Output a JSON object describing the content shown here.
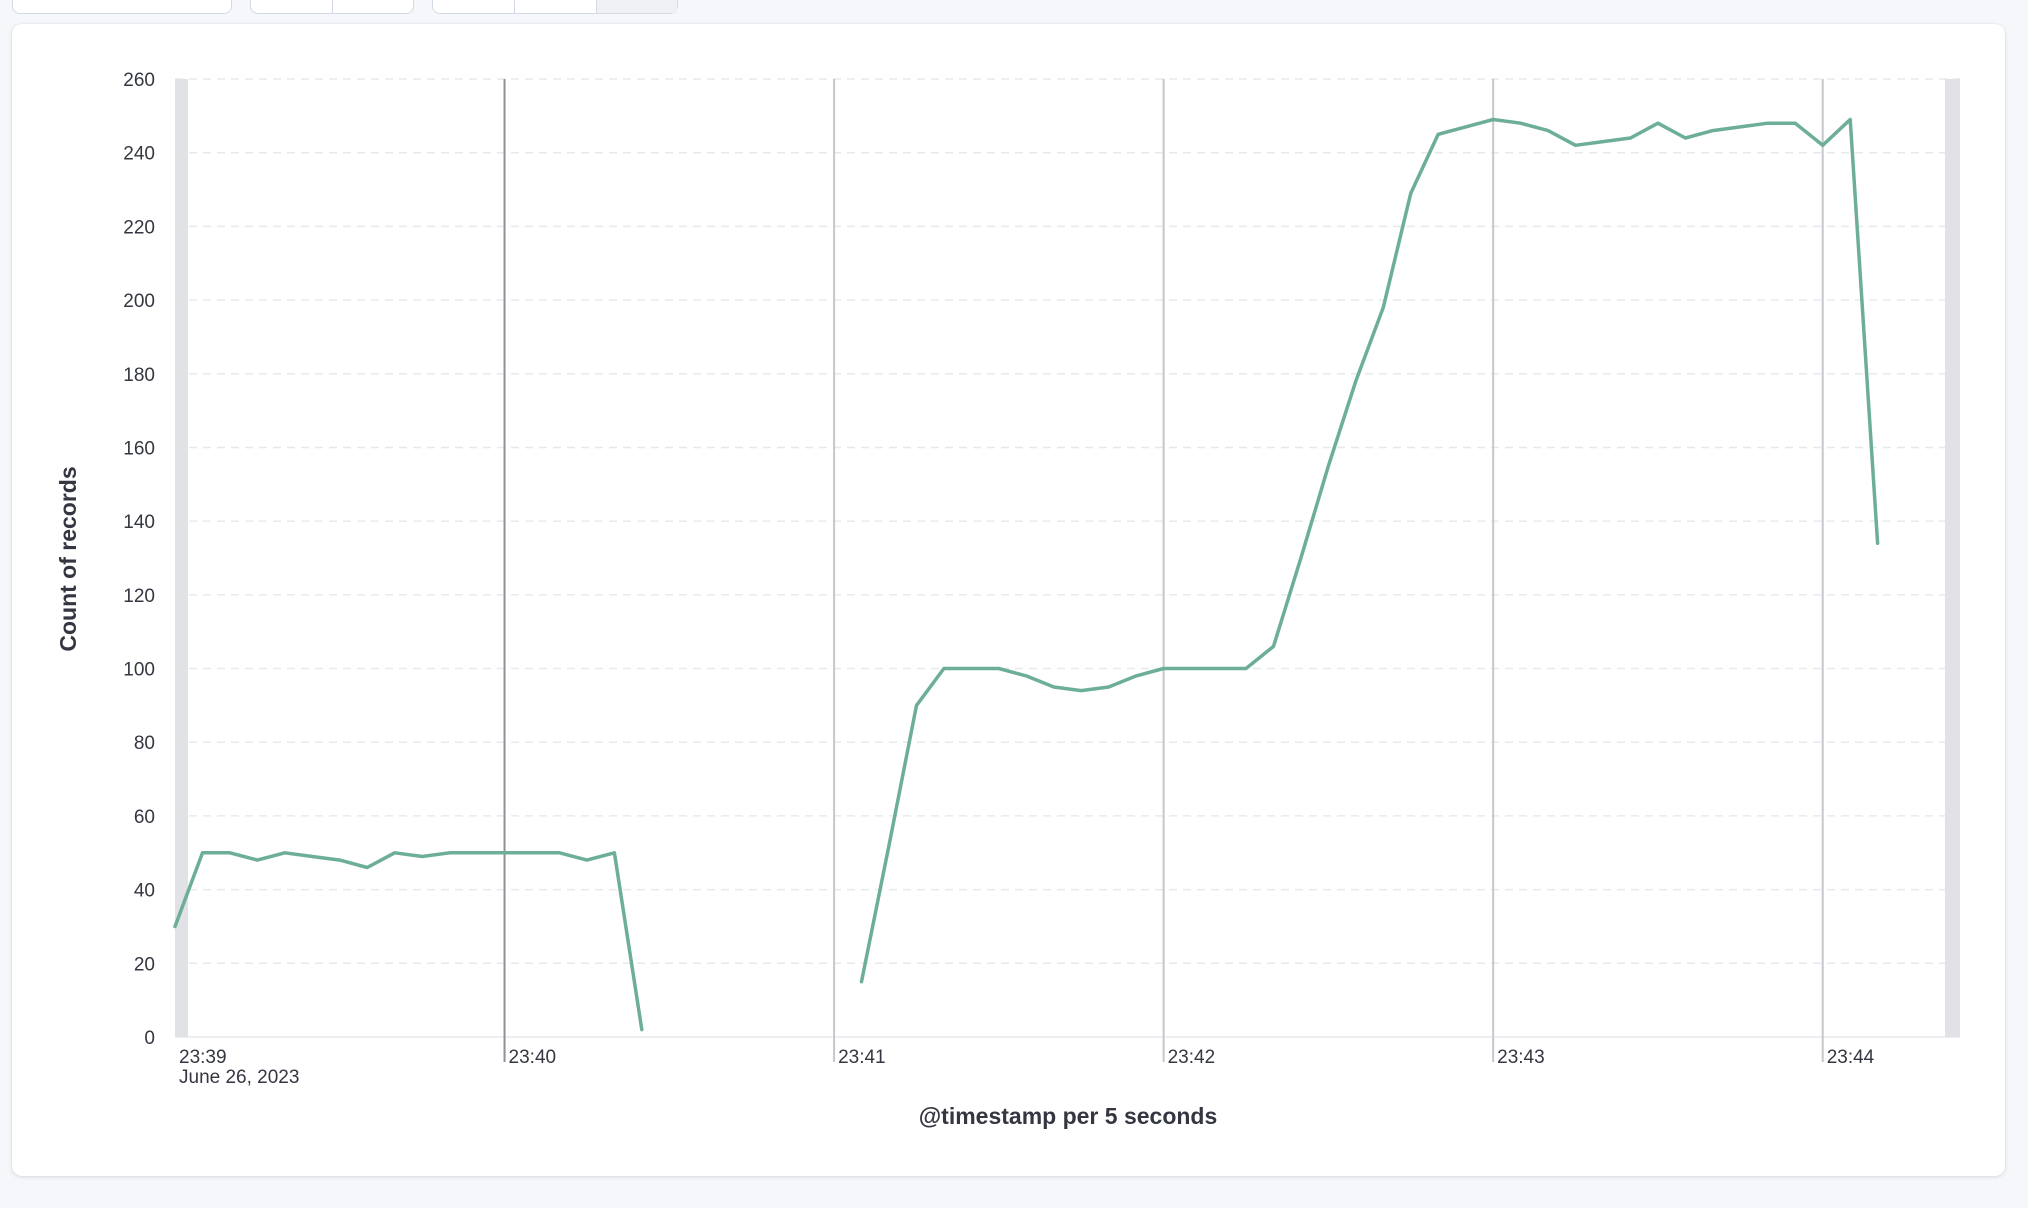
{
  "colors": {
    "series": "#6dae96",
    "grid": "#e6e9ee",
    "major_grid": "#8e9298",
    "minor_grid": "#c4c7cc",
    "end_band": "#e0e2e6",
    "text": "#343741"
  },
  "chart_data": {
    "type": "line",
    "xlabel": "@timestamp per 5 seconds",
    "ylabel": "Count of records",
    "ylim": [
      0,
      260
    ],
    "y_ticks": [
      0,
      20,
      40,
      60,
      80,
      100,
      120,
      140,
      160,
      180,
      200,
      220,
      240,
      260
    ],
    "xlim": [
      "23:39:00",
      "23:44:25"
    ],
    "x_ticks": [
      {
        "time": "23:39:00",
        "label": "23:39",
        "sublabel": "June 26, 2023"
      },
      {
        "time": "23:40:00",
        "label": "23:40",
        "sublabel": ""
      },
      {
        "time": "23:41:00",
        "label": "23:41",
        "sublabel": ""
      },
      {
        "time": "23:42:00",
        "label": "23:42",
        "sublabel": ""
      },
      {
        "time": "23:43:00",
        "label": "23:43",
        "sublabel": ""
      },
      {
        "time": "23:44:00",
        "label": "23:44",
        "sublabel": ""
      }
    ],
    "grid": true,
    "series": [
      {
        "segments": [
          {
            "x": [
              "23:39:00",
              "23:39:05",
              "23:39:10",
              "23:39:15",
              "23:39:20",
              "23:39:25",
              "23:39:30",
              "23:39:35",
              "23:39:40",
              "23:39:45",
              "23:39:50",
              "23:39:55",
              "23:40:00",
              "23:40:05",
              "23:40:10",
              "23:40:15",
              "23:40:20",
              "23:40:25",
              "23:40:30",
              "23:40:35",
              "23:40:40"
            ],
            "y": [
              30,
              50,
              50,
              48,
              50,
              49,
              48,
              46,
              50,
              49,
              50,
              50,
              50,
              50,
              50,
              48,
              50,
              2,
              null,
              null,
              null
            ]
          },
          {
            "x": [
              "23:41:05",
              "23:41:10",
              "23:41:15",
              "23:41:20",
              "23:41:25",
              "23:41:30",
              "23:41:35",
              "23:41:40",
              "23:41:45",
              "23:41:50",
              "23:41:55",
              "23:42:00",
              "23:42:05",
              "23:42:10",
              "23:42:15",
              "23:42:20",
              "23:42:25",
              "23:42:30",
              "23:42:35",
              "23:42:40",
              "23:42:45",
              "23:42:50",
              "23:42:55",
              "23:43:00",
              "23:43:05",
              "23:43:10",
              "23:43:15",
              "23:43:20",
              "23:43:25",
              "23:43:30",
              "23:43:35",
              "23:43:40",
              "23:43:45",
              "23:43:50",
              "23:43:55",
              "23:44:00",
              "23:44:05",
              "23:44:10"
            ],
            "y": [
              15,
              52,
              90,
              100,
              100,
              100,
              98,
              95,
              94,
              95,
              98,
              100,
              100,
              100,
              100,
              106,
              130,
              155,
              178,
              198,
              229,
              245,
              247,
              249,
              248,
              246,
              242,
              243,
              244,
              248,
              244,
              246,
              247,
              248,
              248,
              242,
              249,
              134
            ]
          }
        ]
      }
    ]
  }
}
